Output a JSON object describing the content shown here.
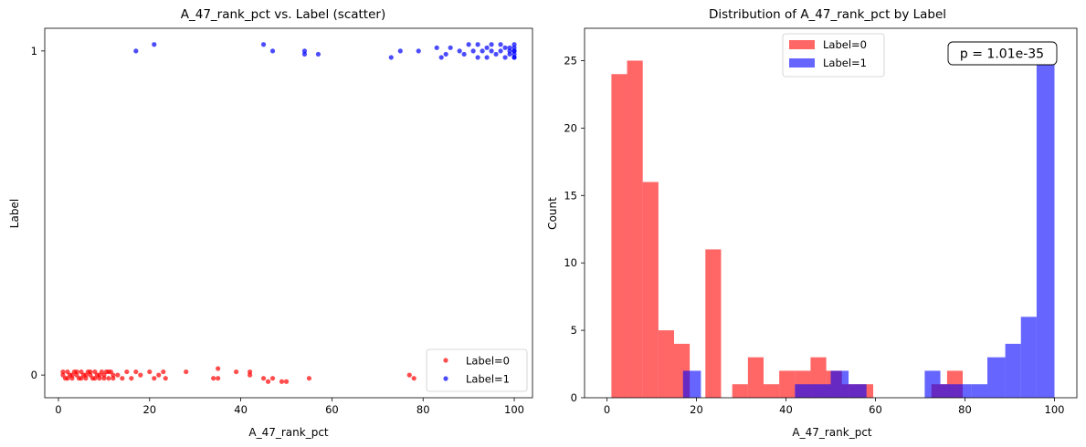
{
  "chart_data": [
    {
      "type": "scatter",
      "title": "A_47_rank_pct vs. Label (scatter)",
      "xlabel": "A_47_rank_pct",
      "ylabel": "Label",
      "xlim": [
        -3,
        104
      ],
      "ylim": [
        -0.07,
        1.07
      ],
      "xticks": [
        0,
        20,
        40,
        60,
        80,
        100
      ],
      "yticks": [
        0,
        1
      ],
      "legend_position": "lower-right",
      "series": [
        {
          "name": "Label=0",
          "color": "#ff0000",
          "points": [
            [
              1,
              0.0
            ],
            [
              1.5,
              -0.01
            ],
            [
              2,
              0.01
            ],
            [
              2.5,
              0.0
            ],
            [
              3,
              -0.01
            ],
            [
              3.5,
              0.01
            ],
            [
              4,
              0.0
            ],
            [
              4.5,
              -0.01
            ],
            [
              5,
              0.01
            ],
            [
              5.5,
              0.0
            ],
            [
              6,
              -0.01
            ],
            [
              6.5,
              0.01
            ],
            [
              7,
              0.0
            ],
            [
              7.5,
              -0.01
            ],
            [
              8,
              0.01
            ],
            [
              8.5,
              0.0
            ],
            [
              9,
              -0.01
            ],
            [
              9.5,
              0.01
            ],
            [
              10,
              0.0
            ],
            [
              10.5,
              0.01
            ],
            [
              11,
              -0.01
            ],
            [
              11.5,
              0.01
            ],
            [
              12,
              0.0
            ],
            [
              1,
              0.01
            ],
            [
              2,
              -0.01
            ],
            [
              3,
              0.0
            ],
            [
              4,
              0.01
            ],
            [
              5,
              -0.01
            ],
            [
              6,
              0.0
            ],
            [
              7,
              0.01
            ],
            [
              8,
              -0.01
            ],
            [
              9,
              0.0
            ],
            [
              10,
              -0.01
            ],
            [
              11,
              0.01
            ],
            [
              12,
              -0.01
            ],
            [
              13,
              0.0
            ],
            [
              14,
              -0.01
            ],
            [
              15,
              0.01
            ],
            [
              16,
              -0.01
            ],
            [
              17,
              0.01
            ],
            [
              18,
              0.0
            ],
            [
              20,
              0.01
            ],
            [
              21,
              -0.01
            ],
            [
              22,
              0.0
            ],
            [
              23,
              0.01
            ],
            [
              23.5,
              -0.01
            ],
            [
              28,
              0.01
            ],
            [
              34,
              -0.01
            ],
            [
              35,
              0.02
            ],
            [
              35,
              -0.01
            ],
            [
              39,
              0.01
            ],
            [
              42,
              0.01
            ],
            [
              42,
              0.0
            ],
            [
              45,
              -0.01
            ],
            [
              46,
              -0.02
            ],
            [
              47,
              -0.01
            ],
            [
              49,
              -0.02
            ],
            [
              50,
              -0.02
            ],
            [
              55,
              -0.01
            ],
            [
              77,
              0.0
            ],
            [
              78,
              -0.01
            ]
          ]
        },
        {
          "name": "Label=1",
          "color": "#0000ff",
          "points": [
            [
              17,
              1.0
            ],
            [
              21,
              1.02
            ],
            [
              45,
              1.02
            ],
            [
              47,
              1.0
            ],
            [
              54,
              0.99
            ],
            [
              54,
              1.0
            ],
            [
              57,
              0.99
            ],
            [
              73,
              0.98
            ],
            [
              75,
              1.0
            ],
            [
              79,
              1.0
            ],
            [
              83,
              1.01
            ],
            [
              84,
              0.98
            ],
            [
              85,
              0.99
            ],
            [
              86,
              1.01
            ],
            [
              88,
              1.0
            ],
            [
              89,
              0.99
            ],
            [
              90,
              1.02
            ],
            [
              91,
              1.0
            ],
            [
              92,
              0.98
            ],
            [
              92,
              1.02
            ],
            [
              93,
              1.0
            ],
            [
              94,
              1.01
            ],
            [
              94,
              0.98
            ],
            [
              95,
              1.0
            ],
            [
              95,
              1.02
            ],
            [
              96,
              0.99
            ],
            [
              97,
              1.0
            ],
            [
              97,
              1.02
            ],
            [
              98,
              0.98
            ],
            [
              98,
              1.01
            ],
            [
              99,
              1.0
            ],
            [
              99,
              0.99
            ],
            [
              99,
              1.01
            ],
            [
              100,
              0.98
            ],
            [
              100,
              1.0
            ],
            [
              100,
              1.01
            ],
            [
              100,
              0.99
            ],
            [
              100,
              1.02
            ],
            [
              100,
              0.98
            ],
            [
              100,
              1.0
            ]
          ]
        }
      ]
    },
    {
      "type": "histogram",
      "title": "Distribution of A_47_rank_pct by Label",
      "xlabel": "A_47_rank_pct",
      "ylabel": "Count",
      "xlim": [
        -5,
        105
      ],
      "ylim": [
        0,
        27.4
      ],
      "xticks": [
        0,
        20,
        40,
        60,
        80,
        100
      ],
      "yticks": [
        0,
        5,
        10,
        15,
        20,
        25
      ],
      "legend_position": "top-center",
      "annotation": "p = 1.01e-35",
      "series": [
        {
          "name": "Label=0",
          "color": "#ff0000",
          "opacity": 0.6,
          "bins": [
            [
              1,
              4.5,
              24
            ],
            [
              4.5,
              8,
              25
            ],
            [
              8,
              11.5,
              16
            ],
            [
              11.5,
              15,
              5
            ],
            [
              15,
              18.5,
              4
            ],
            [
              18.5,
              22,
              0
            ],
            [
              22,
              25.5,
              11
            ],
            [
              28,
              31.5,
              1
            ],
            [
              31.5,
              35,
              3
            ],
            [
              35,
              38.5,
              1
            ],
            [
              38.5,
              42,
              2
            ],
            [
              42,
              45.5,
              2
            ],
            [
              45.5,
              49,
              3
            ],
            [
              49,
              52.5,
              2
            ],
            [
              52.5,
              56,
              1
            ],
            [
              56,
              59.5,
              1
            ],
            [
              72.5,
              76,
              1
            ],
            [
              76,
              79.5,
              2
            ]
          ]
        },
        {
          "name": "Label=1",
          "color": "#0000ff",
          "opacity": 0.6,
          "bins": [
            [
              17,
              21,
              2
            ],
            [
              42,
              46,
              1
            ],
            [
              46,
              50,
              1
            ],
            [
              50,
              54,
              2
            ],
            [
              54,
              58,
              1
            ],
            [
              71,
              74.5,
              2
            ],
            [
              74.5,
              78,
              1
            ],
            [
              78,
              81.5,
              1
            ],
            [
              81.5,
              85,
              1
            ],
            [
              85,
              89,
              3
            ],
            [
              89,
              92.5,
              4
            ],
            [
              92.5,
              96,
              6
            ],
            [
              96,
              100,
              25
            ]
          ]
        }
      ]
    }
  ]
}
